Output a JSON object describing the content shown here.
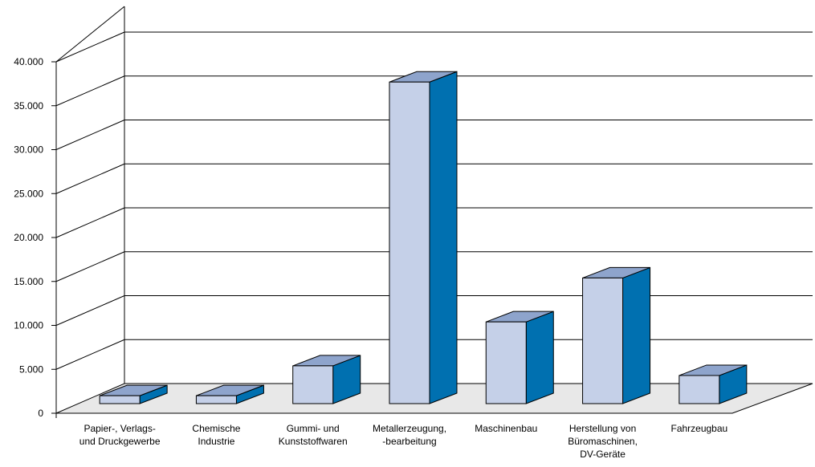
{
  "chart_data": {
    "type": "bar",
    "title": "",
    "xlabel": "",
    "ylabel": "",
    "ylim": [
      0,
      40000
    ],
    "y_ticks": [
      0,
      5000,
      10000,
      15000,
      20000,
      25000,
      30000,
      35000,
      40000
    ],
    "y_tick_labels": [
      "0",
      "5.000",
      "10.000",
      "15.000",
      "20.000",
      "25.000",
      "30.000",
      "35.000",
      "40.000"
    ],
    "categories": [
      [
        "Papier-, Verlags-",
        "und Druckgewerbe"
      ],
      [
        "Chemische",
        "Industrie"
      ],
      [
        "Gummi- und",
        "Kunststoffwaren"
      ],
      [
        "Metallerzeugung,",
        "-bearbeitung"
      ],
      [
        "Maschinenbau"
      ],
      [
        "Herstellung von",
        "Büromaschinen,",
        "DV-Geräte"
      ],
      [
        "Fahrzeugbau"
      ]
    ],
    "values": [
      900,
      900,
      4300,
      36600,
      9300,
      14300,
      3200
    ],
    "grid": true,
    "style": "3d-bar",
    "colors": {
      "front": "#c5d0e8",
      "side": "#0070b0",
      "top": "#8ea4cc",
      "floor": "#e8e8e8",
      "grid": "#000000"
    }
  }
}
